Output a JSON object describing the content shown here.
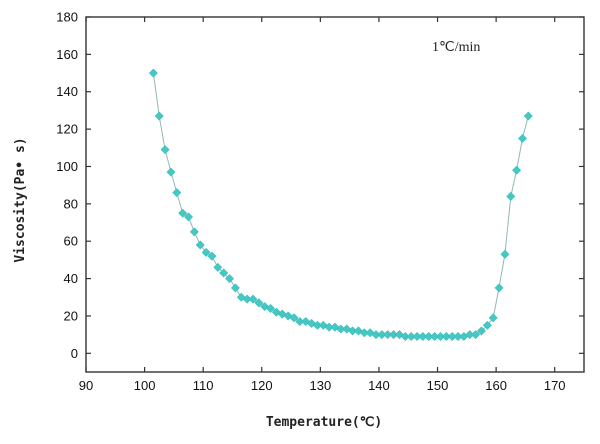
{
  "chart_data": {
    "type": "scatter",
    "xlabel": "Temperature(℃)",
    "ylabel": "Viscosity(Pa• s)",
    "annotation": "1℃/min",
    "xlim": [
      90,
      175
    ],
    "ylim": [
      -10,
      180
    ],
    "xticks": [
      90,
      100,
      110,
      120,
      130,
      140,
      150,
      160,
      170
    ],
    "yticks": [
      0,
      20,
      40,
      60,
      80,
      100,
      120,
      140,
      160,
      180
    ],
    "grid": false,
    "marker": "diamond",
    "colors": {
      "marker": "#45c8c4",
      "line": "#8fb8b6",
      "axis": "#333333"
    },
    "series": [
      {
        "x": [
          101.5,
          102.5,
          103.5,
          104.5,
          105.5,
          106.5,
          107.5,
          108.5,
          109.5,
          110.5,
          111.5,
          112.5,
          113.5,
          114.5,
          115.5,
          116.5,
          117.5,
          118.5,
          119.5,
          120.5,
          121.5,
          122.5,
          123.5,
          124.5,
          125.5,
          126.5,
          127.5,
          128.5,
          129.5,
          130.5,
          131.5,
          132.5,
          133.5,
          134.5,
          135.5,
          136.5,
          137.5,
          138.5,
          139.5,
          140.5,
          141.5,
          142.5,
          143.5,
          144.5,
          145.5,
          146.5,
          147.5,
          148.5,
          149.5,
          150.5,
          151.5,
          152.5,
          153.5,
          154.5,
          155.5,
          156.5,
          157.5,
          158.5,
          159.5,
          160.5,
          161.5,
          162.5,
          163.5,
          164.5,
          165.5
        ],
        "y": [
          150,
          127,
          109,
          97,
          86,
          75,
          73,
          65,
          58,
          54,
          52,
          46,
          43,
          40,
          35,
          30,
          29,
          29,
          27,
          25,
          24,
          22,
          21,
          20,
          19,
          17,
          17,
          16,
          15,
          15,
          14,
          14,
          13,
          13,
          12,
          12,
          11,
          11,
          10,
          10,
          10,
          10,
          10,
          9,
          9,
          9,
          9,
          9,
          9,
          9,
          9,
          9,
          9,
          9,
          10,
          10,
          12,
          15,
          19,
          35,
          53,
          84,
          98,
          115,
          127
        ]
      }
    ]
  }
}
